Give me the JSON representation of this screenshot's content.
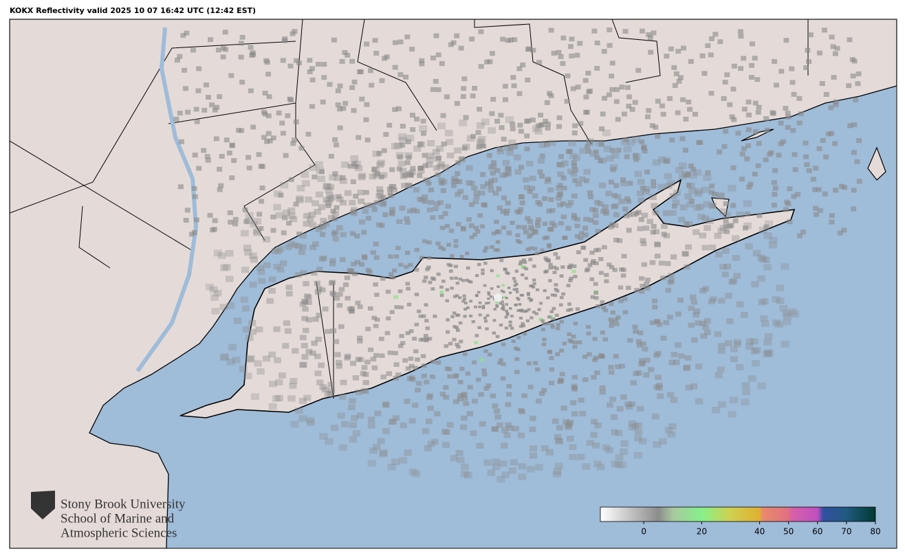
{
  "header": {
    "title": "KOKX Reflectivity valid 2025 10 07 16:42 UTC (12:42 EST)"
  },
  "logo": {
    "lines": [
      "Stony Brook University",
      "School of Marine and",
      "Atmospheric Sciences"
    ]
  },
  "colorbar": {
    "lim": [
      -15,
      80
    ],
    "ticks": [
      0,
      20,
      40,
      50,
      60,
      70,
      80
    ],
    "stops": [
      {
        "value": -15,
        "color": "#ffffff"
      },
      {
        "value": 5,
        "color": "#8c8c8c"
      },
      {
        "value": 10,
        "color": "#a8c8a0"
      },
      {
        "value": 20,
        "color": "#86f08a"
      },
      {
        "value": 30,
        "color": "#d0d050"
      },
      {
        "value": 40,
        "color": "#e0b030"
      },
      {
        "value": 41,
        "color": "#e88a6a"
      },
      {
        "value": 50,
        "color": "#e07080"
      },
      {
        "value": 51,
        "color": "#d860a8"
      },
      {
        "value": 60,
        "color": "#c050c0"
      },
      {
        "value": 62,
        "color": "#3050a0"
      },
      {
        "value": 70,
        "color": "#205a80"
      },
      {
        "value": 80,
        "color": "#003a30"
      }
    ]
  }
}
